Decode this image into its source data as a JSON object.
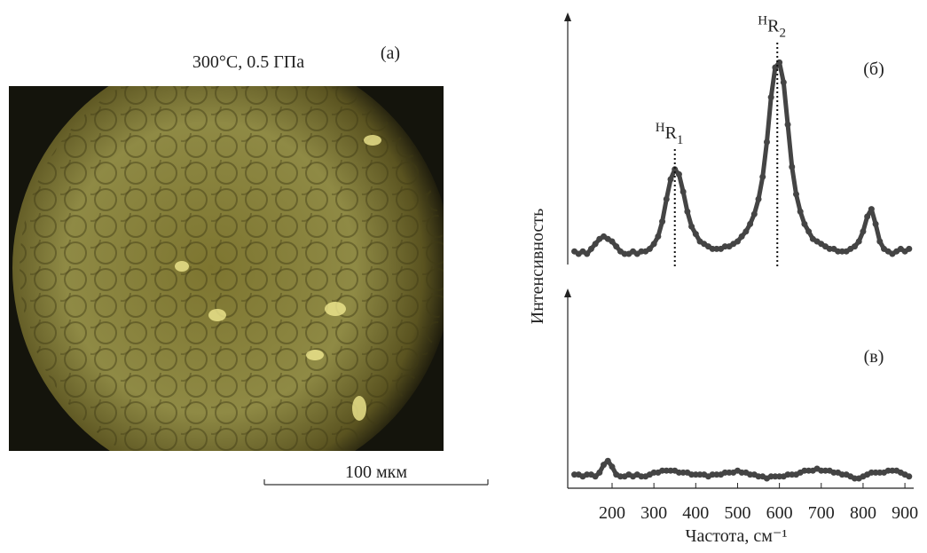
{
  "image": {
    "panel_label": "(а)",
    "caption": "300°C, 0.5 ГПа",
    "scale_bar": "100 мкм"
  },
  "chart_data": [
    {
      "type": "scatter",
      "panel_label": "(б)",
      "ylabel": "Интенсивность",
      "color": "#444444",
      "xlim": [
        94,
        921
      ],
      "ylim": [
        0,
        100
      ],
      "x": [
        110,
        120,
        130,
        140,
        150,
        160,
        170,
        180,
        190,
        200,
        210,
        220,
        230,
        240,
        250,
        260,
        270,
        280,
        290,
        300,
        310,
        320,
        330,
        340,
        350,
        360,
        370,
        380,
        390,
        400,
        410,
        420,
        430,
        440,
        450,
        460,
        470,
        480,
        490,
        500,
        510,
        520,
        530,
        540,
        550,
        560,
        570,
        580,
        590,
        600,
        610,
        620,
        630,
        640,
        650,
        660,
        670,
        680,
        690,
        700,
        710,
        720,
        730,
        740,
        750,
        760,
        770,
        780,
        790,
        800,
        810,
        820,
        830,
        840,
        850,
        860,
        870,
        880,
        890,
        900,
        910
      ],
      "values": [
        6,
        5,
        6,
        5,
        7,
        9,
        11,
        12,
        11,
        10,
        8,
        6,
        5,
        5,
        6,
        5,
        6,
        6,
        7,
        9,
        12,
        18,
        27,
        35,
        39,
        37,
        30,
        22,
        16,
        13,
        10,
        9,
        8,
        7,
        7,
        7,
        8,
        8,
        9,
        10,
        12,
        14,
        17,
        21,
        27,
        36,
        50,
        68,
        80,
        82,
        74,
        57,
        40,
        29,
        22,
        17,
        14,
        11,
        10,
        9,
        8,
        7,
        7,
        6,
        6,
        6,
        7,
        8,
        10,
        14,
        20,
        23,
        17,
        10,
        7,
        6,
        5,
        6,
        7,
        6,
        7
      ],
      "annotations": [
        {
          "pre": "H",
          "main": "R",
          "sub": "1",
          "x": 350,
          "y": 50
        },
        {
          "pre": "H",
          "main": "R",
          "sub": "2",
          "x": 595,
          "y": 93
        }
      ]
    },
    {
      "type": "scatter",
      "panel_label": "(в)",
      "xlabel": "Частота, см⁻¹",
      "color": "#444444",
      "xlim": [
        94,
        921
      ],
      "ylim": [
        0,
        100
      ],
      "xticks": [
        200,
        300,
        400,
        500,
        600,
        700,
        800,
        900
      ],
      "x": [
        110,
        120,
        130,
        140,
        150,
        160,
        170,
        180,
        190,
        200,
        210,
        220,
        230,
        240,
        250,
        260,
        270,
        280,
        290,
        300,
        310,
        320,
        330,
        340,
        350,
        360,
        370,
        380,
        390,
        400,
        410,
        420,
        430,
        440,
        450,
        460,
        470,
        480,
        490,
        500,
        510,
        520,
        530,
        540,
        550,
        560,
        570,
        580,
        590,
        600,
        610,
        620,
        630,
        640,
        650,
        660,
        670,
        680,
        690,
        700,
        710,
        720,
        730,
        740,
        750,
        760,
        770,
        780,
        790,
        800,
        810,
        820,
        830,
        840,
        850,
        860,
        870,
        880,
        890,
        900,
        910
      ],
      "values": [
        7,
        7,
        6,
        7,
        7,
        6,
        8,
        12,
        14,
        11,
        7,
        6,
        6,
        7,
        6,
        7,
        6,
        6,
        7,
        8,
        8,
        9,
        9,
        9,
        9,
        8,
        8,
        8,
        7,
        7,
        7,
        7,
        6,
        7,
        7,
        7,
        8,
        8,
        8,
        9,
        8,
        8,
        7,
        7,
        6,
        6,
        5,
        6,
        6,
        6,
        6,
        7,
        7,
        7,
        8,
        9,
        9,
        9,
        10,
        9,
        9,
        9,
        8,
        8,
        7,
        7,
        6,
        5,
        5,
        6,
        7,
        8,
        8,
        8,
        8,
        9,
        9,
        9,
        8,
        7,
        6
      ]
    }
  ]
}
